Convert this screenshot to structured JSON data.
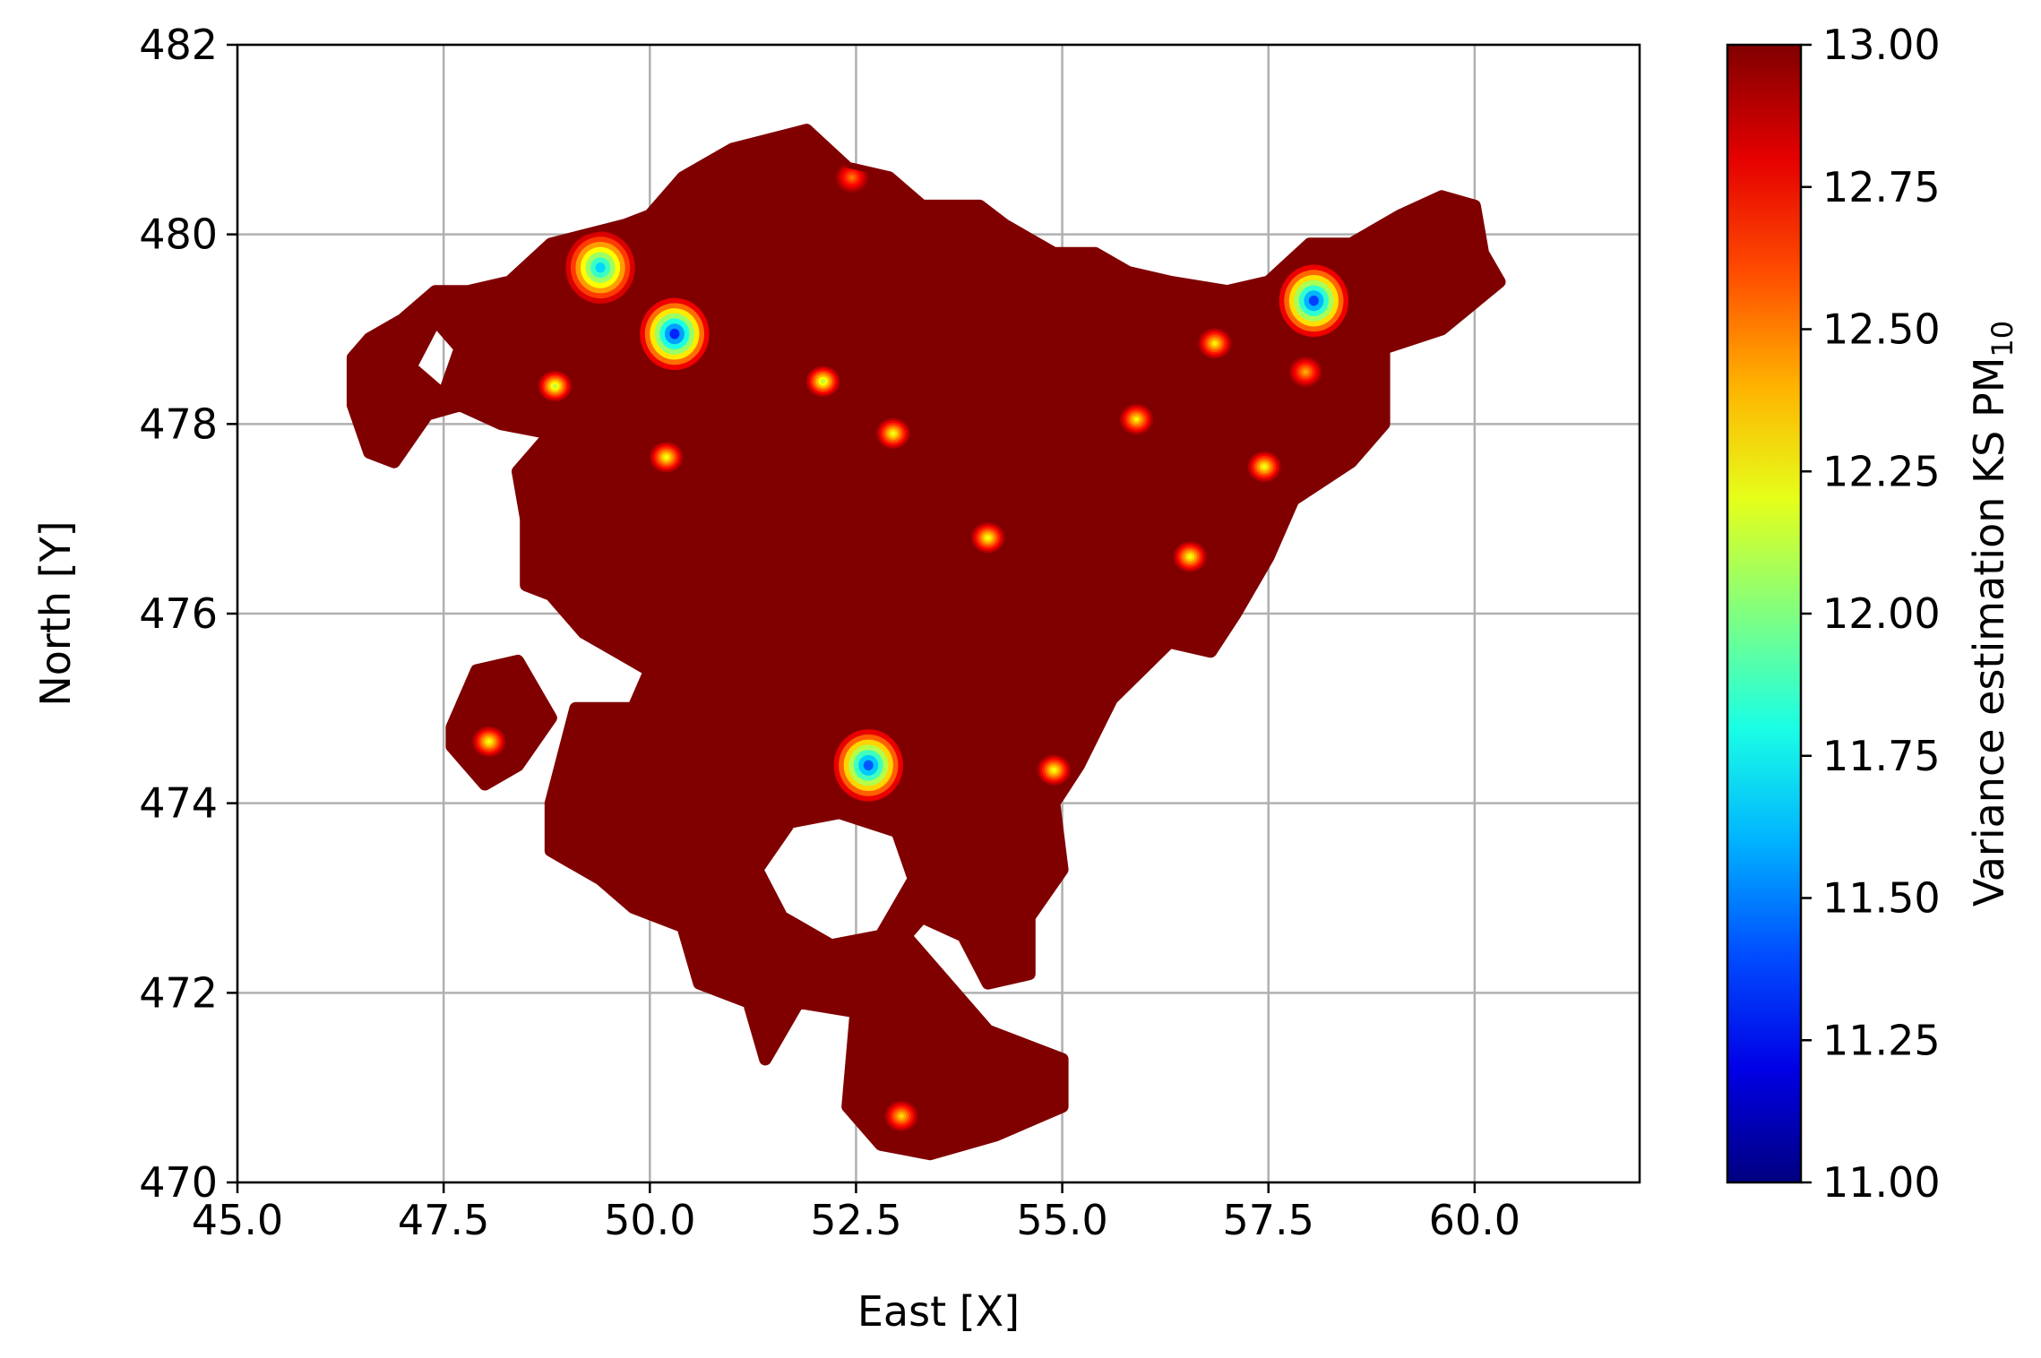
{
  "chart_data": {
    "type": "heatmap",
    "title": "",
    "xlabel": "East [X]",
    "ylabel": "North [Y]",
    "xlim": [
      45.0,
      62.0
    ],
    "ylim": [
      470,
      482
    ],
    "xticks": [
      45.0,
      47.5,
      50.0,
      52.5,
      55.0,
      57.5,
      60.0
    ],
    "xtick_labels": [
      "45.0",
      "47.5",
      "50.0",
      "52.5",
      "55.0",
      "57.5",
      "60.0"
    ],
    "yticks": [
      470,
      472,
      474,
      476,
      478,
      480,
      482
    ],
    "ytick_labels": [
      "470",
      "472",
      "474",
      "476",
      "478",
      "480",
      "482"
    ],
    "grid": true,
    "colormap": "jet",
    "colorbar": {
      "label": "Variance estimation KS PM",
      "label_subscript": "10",
      "range": [
        11.0,
        13.0
      ],
      "ticks": [
        11.0,
        11.25,
        11.5,
        11.75,
        12.0,
        12.25,
        12.5,
        12.75,
        13.0
      ],
      "tick_labels": [
        "11.00",
        "11.25",
        "11.50",
        "11.75",
        "12.00",
        "12.25",
        "12.50",
        "12.75",
        "13.00"
      ]
    },
    "background_value": 13.0,
    "region_outline": [
      [
        46.4,
        478.7
      ],
      [
        46.6,
        478.9
      ],
      [
        47.0,
        479.1
      ],
      [
        47.4,
        479.4
      ],
      [
        47.8,
        479.4
      ],
      [
        48.3,
        479.5
      ],
      [
        48.8,
        479.9
      ],
      [
        49.7,
        480.1
      ],
      [
        50.0,
        480.2
      ],
      [
        50.4,
        480.6
      ],
      [
        51.0,
        480.9
      ],
      [
        51.9,
        481.1
      ],
      [
        52.4,
        480.7
      ],
      [
        52.9,
        480.6
      ],
      [
        53.3,
        480.3
      ],
      [
        54.0,
        480.3
      ],
      [
        54.3,
        480.1
      ],
      [
        54.9,
        479.8
      ],
      [
        55.4,
        479.8
      ],
      [
        55.8,
        479.6
      ],
      [
        56.3,
        479.5
      ],
      [
        57.0,
        479.4
      ],
      [
        57.5,
        479.5
      ],
      [
        58.0,
        479.9
      ],
      [
        58.5,
        479.9
      ],
      [
        59.1,
        480.2
      ],
      [
        59.6,
        480.4
      ],
      [
        60.0,
        480.3
      ],
      [
        60.1,
        479.8
      ],
      [
        60.3,
        479.5
      ],
      [
        59.6,
        479.0
      ],
      [
        58.9,
        478.8
      ],
      [
        58.9,
        478.0
      ],
      [
        58.5,
        477.6
      ],
      [
        57.8,
        477.2
      ],
      [
        57.5,
        476.6
      ],
      [
        57.1,
        476.0
      ],
      [
        56.8,
        475.6
      ],
      [
        56.3,
        475.7
      ],
      [
        55.6,
        475.1
      ],
      [
        55.2,
        474.4
      ],
      [
        54.9,
        474.0
      ],
      [
        55.0,
        473.3
      ],
      [
        54.6,
        472.8
      ],
      [
        54.6,
        472.2
      ],
      [
        54.1,
        472.1
      ],
      [
        53.8,
        472.6
      ],
      [
        53.3,
        472.8
      ],
      [
        53.1,
        472.6
      ],
      [
        54.1,
        471.6
      ],
      [
        55.0,
        471.3
      ],
      [
        55.0,
        470.8
      ],
      [
        54.2,
        470.5
      ],
      [
        53.4,
        470.3
      ],
      [
        52.8,
        470.4
      ],
      [
        52.4,
        470.8
      ],
      [
        52.5,
        471.8
      ],
      [
        51.8,
        471.9
      ],
      [
        51.4,
        471.3
      ],
      [
        51.2,
        471.9
      ],
      [
        50.6,
        472.1
      ],
      [
        50.4,
        472.7
      ],
      [
        49.8,
        472.9
      ],
      [
        49.4,
        473.2
      ],
      [
        48.8,
        473.5
      ],
      [
        48.8,
        474.0
      ],
      [
        49.1,
        475.0
      ],
      [
        49.8,
        475.0
      ],
      [
        50.0,
        475.4
      ],
      [
        49.6,
        475.6
      ],
      [
        49.2,
        475.8
      ],
      [
        48.8,
        476.2
      ],
      [
        48.5,
        476.3
      ],
      [
        48.5,
        477.0
      ],
      [
        48.4,
        477.5
      ],
      [
        48.8,
        477.9
      ],
      [
        48.2,
        478.0
      ],
      [
        47.7,
        478.2
      ],
      [
        47.3,
        478.1
      ],
      [
        46.9,
        477.6
      ],
      [
        46.6,
        477.7
      ],
      [
        46.4,
        478.2
      ]
    ],
    "region_islands": [
      [
        [
          47.6,
          474.8
        ],
        [
          47.9,
          475.4
        ],
        [
          48.4,
          475.5
        ],
        [
          48.8,
          474.9
        ],
        [
          48.4,
          474.4
        ],
        [
          48.0,
          474.2
        ],
        [
          47.6,
          474.6
        ]
      ]
    ],
    "region_holes": [
      [
        [
          51.3,
          473.3
        ],
        [
          51.7,
          473.8
        ],
        [
          52.3,
          473.9
        ],
        [
          53.0,
          473.7
        ],
        [
          53.2,
          473.2
        ],
        [
          52.8,
          472.6
        ],
        [
          52.2,
          472.5
        ],
        [
          51.6,
          472.8
        ]
      ],
      [
        [
          47.1,
          478.6
        ],
        [
          47.4,
          479.1
        ],
        [
          47.7,
          478.8
        ],
        [
          47.5,
          478.3
        ]
      ]
    ],
    "low_variance_spots": [
      {
        "x": 49.4,
        "y": 479.65,
        "min": 11.65
      },
      {
        "x": 50.3,
        "y": 478.95,
        "min": 11.3
      },
      {
        "x": 48.85,
        "y": 478.4,
        "min": 12.1
      },
      {
        "x": 52.1,
        "y": 478.45,
        "min": 12.1
      },
      {
        "x": 52.95,
        "y": 477.9,
        "min": 12.2
      },
      {
        "x": 50.2,
        "y": 477.65,
        "min": 12.2
      },
      {
        "x": 54.1,
        "y": 476.8,
        "min": 12.2
      },
      {
        "x": 55.9,
        "y": 478.05,
        "min": 12.25
      },
      {
        "x": 56.85,
        "y": 478.85,
        "min": 12.25
      },
      {
        "x": 58.05,
        "y": 479.3,
        "min": 11.35
      },
      {
        "x": 57.45,
        "y": 477.55,
        "min": 12.2
      },
      {
        "x": 56.55,
        "y": 476.6,
        "min": 12.2
      },
      {
        "x": 57.95,
        "y": 478.55,
        "min": 12.4
      },
      {
        "x": 52.65,
        "y": 474.4,
        "min": 11.4
      },
      {
        "x": 54.9,
        "y": 474.35,
        "min": 12.2
      },
      {
        "x": 48.05,
        "y": 474.65,
        "min": 12.2
      },
      {
        "x": 53.05,
        "y": 470.7,
        "min": 12.3
      },
      {
        "x": 52.45,
        "y": 480.6,
        "min": 12.5
      }
    ]
  }
}
